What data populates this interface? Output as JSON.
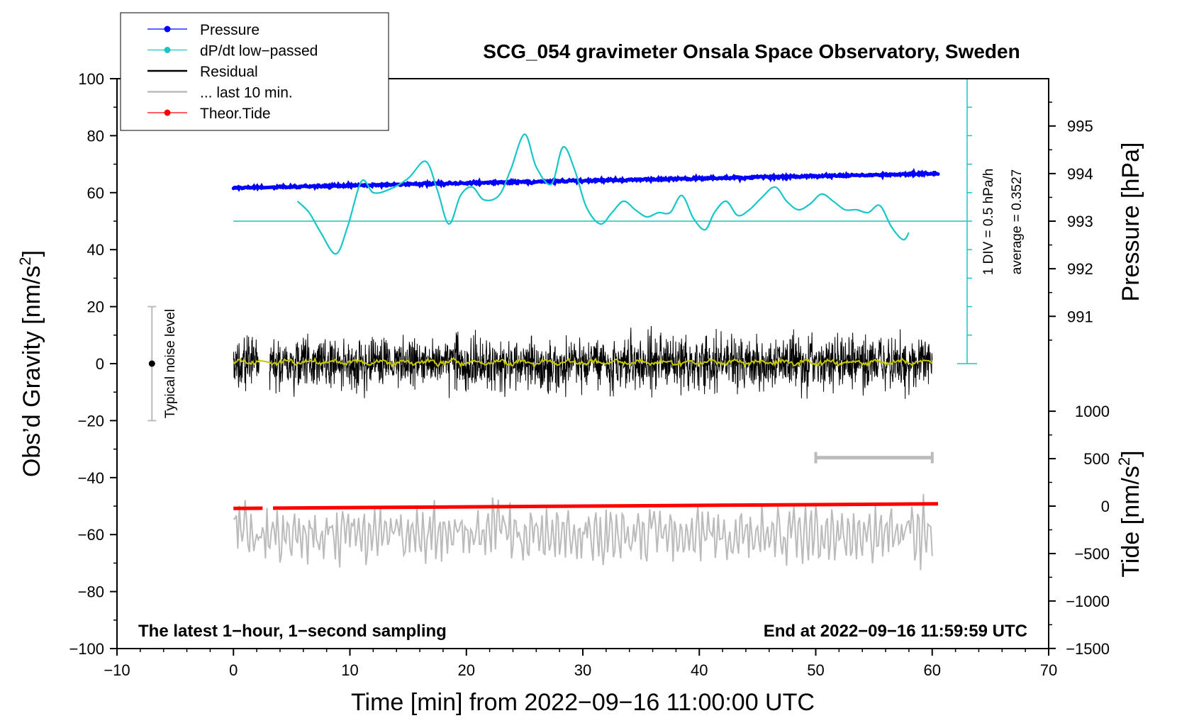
{
  "chart_data": {
    "type": "line",
    "title": "SCG_054 gravimeter Onsala Space Observatory, Sweden",
    "xlabel": "Time [min] from 2022−09−16 11:00:00 UTC",
    "ylabel_left": "Obs’d Gravity [nm/s",
    "ylabel_left_sup": "2",
    "ylabel_left_close": "]",
    "ylabel_right_pressure": "Pressure [hPa]",
    "ylabel_right_tide": "Tide [nm/s",
    "ylabel_right_tide_sup": "2",
    "ylabel_right_tide_close": "]",
    "xlim": [
      -10,
      70
    ],
    "ylim_left": [
      -100,
      100
    ],
    "x_ticks": [
      "−10",
      "0",
      "10",
      "20",
      "30",
      "40",
      "50",
      "60",
      "70"
    ],
    "x_tick_values": [
      -10,
      0,
      10,
      20,
      30,
      40,
      50,
      60,
      70
    ],
    "y_ticks_left": [
      "100",
      "80",
      "60",
      "40",
      "20",
      "0",
      "−20",
      "−40",
      "−60",
      "−80",
      "−100"
    ],
    "y_tick_values_left": [
      100,
      80,
      60,
      40,
      20,
      0,
      -20,
      -40,
      -60,
      -80,
      -100
    ],
    "pressure_ticks": [
      "995",
      "994",
      "993",
      "992",
      "991"
    ],
    "pressure_tick_values": [
      995,
      994,
      993,
      992,
      991
    ],
    "pressure_to_left_axis": {
      "ref_hpa": 993,
      "ref_left": 50,
      "left_per_hpa": 16.7
    },
    "tide_ticks": [
      "1000",
      "500",
      "0",
      "−500",
      "−1000",
      "−1500"
    ],
    "tide_tick_values": [
      1000,
      500,
      0,
      -500,
      -1000,
      -1500
    ],
    "tide_to_left_axis": {
      "ref_tide": 0,
      "ref_left": -50,
      "left_per_tide": 0.0333
    },
    "legend": [
      {
        "label": "Pressure",
        "color": "#0000ff",
        "marker": true
      },
      {
        "label": "dP/dt low−passed",
        "color": "#17c7c7",
        "marker": true
      },
      {
        "label": "Residual",
        "color": "#000000",
        "marker": false
      },
      {
        "label": "... last 10 min.",
        "color": "#bbbbbb",
        "marker": false
      },
      {
        "label": "Theor.Tide",
        "color": "#ff0000",
        "marker": true
      }
    ],
    "pressure_series": {
      "name": "Pressure",
      "color": "#0000ff",
      "start": [
        0,
        993.7
      ],
      "end": [
        60.5,
        994.0
      ],
      "gap": [
        2.5,
        3.4
      ]
    },
    "dpdt_series": {
      "name": "dP/dt low−passed",
      "color": "#17c7c7",
      "x": [
        5.5,
        6.5,
        7.5,
        8.8,
        9.8,
        11.0,
        12.0,
        13.3,
        15.0,
        16.5,
        17.5,
        18.5,
        19.5,
        20.5,
        21.5,
        22.8,
        23.8,
        25.0,
        26.0,
        27.3,
        28.3,
        29.3,
        30.3,
        31.5,
        32.5,
        33.5,
        34.5,
        35.5,
        36.5,
        37.5,
        38.5,
        39.5,
        40.5,
        41.3,
        42.3,
        43.3,
        44.3,
        45.3,
        46.5,
        47.5,
        48.5,
        49.5,
        50.5,
        51.5,
        52.5,
        53.5,
        54.5,
        55.5,
        56.5,
        57.5,
        58.0
      ],
      "values": [
        57,
        53,
        46,
        38.5,
        48,
        64,
        60,
        61,
        65,
        71,
        61,
        49,
        59,
        62,
        57.5,
        59,
        68,
        80.5,
        69,
        63,
        76,
        68,
        55,
        49,
        53,
        57,
        54,
        51.5,
        53,
        53,
        59,
        51,
        47,
        53,
        57,
        52,
        54,
        58,
        62,
        57,
        54,
        56,
        59.5,
        57,
        54,
        54,
        53,
        55.5,
        48,
        43.5,
        46
      ]
    },
    "dpdt_reference": {
      "value": 50,
      "x_end": 63
    },
    "dpdt_scale": {
      "division_label": "1 DIV = 0.5 hPa/h",
      "average_label": "average = 0.3527",
      "axis_top": 100,
      "axis_bottom": 0,
      "axis_x": 63,
      "minor_step": 10
    },
    "residual_series": {
      "name": "Residual",
      "color": "#000000",
      "x_range": [
        0,
        60
      ],
      "gap": [
        2.2,
        3.1
      ],
      "amplitude": 10,
      "mean": 0
    },
    "residual_smoothed": {
      "color": "#c8c800",
      "mean": 0.5
    },
    "last10_series": {
      "name": "... last 10 min.",
      "color": "#bbbbbb",
      "x_range": [
        0,
        60
      ],
      "mean": -60,
      "amplitude": 10
    },
    "last10_bar": {
      "x_range": [
        50,
        60
      ],
      "y": -33,
      "color": "#bbbbbb"
    },
    "tide_series": {
      "name": "Theor.Tide",
      "color": "#ff0000",
      "start": [
        0,
        -50.8
      ],
      "end": [
        60.5,
        -49.2
      ],
      "gap": [
        2.5,
        3.4
      ]
    },
    "noise_level": {
      "label": "Typical noise level",
      "x": -7,
      "y": 0,
      "range": [
        -20,
        20
      ]
    },
    "annotation_left": "The latest 1−hour, 1−second sampling",
    "annotation_right": "End at 2022−09−16 11:59:59 UTC"
  }
}
